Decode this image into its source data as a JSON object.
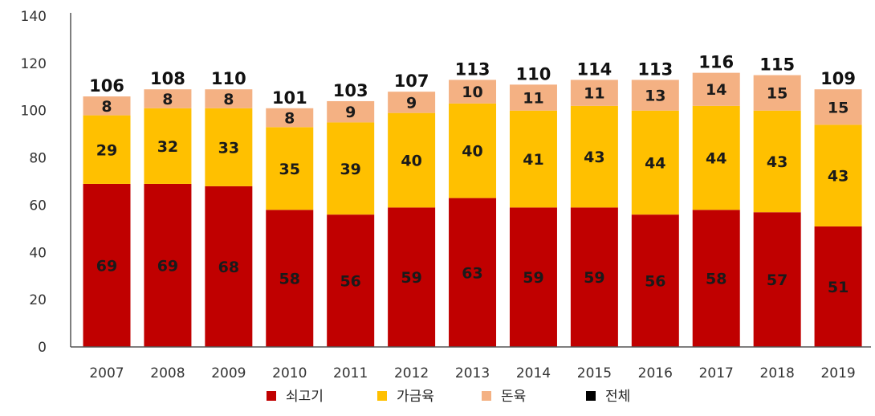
{
  "chart_data": {
    "type": "bar",
    "stacked": true,
    "categories": [
      "2007",
      "2008",
      "2009",
      "2010",
      "2011",
      "2012",
      "2013",
      "2014",
      "2015",
      "2016",
      "2017",
      "2018",
      "2019"
    ],
    "series": [
      {
        "name": "쇠고기",
        "color": "#c00000",
        "values": [
          69,
          69,
          68,
          58,
          56,
          59,
          63,
          59,
          59,
          56,
          58,
          57,
          51
        ]
      },
      {
        "name": "가금육",
        "color": "#ffc000",
        "values": [
          29,
          32,
          33,
          35,
          39,
          40,
          40,
          41,
          43,
          44,
          44,
          43,
          43
        ]
      },
      {
        "name": "돈육",
        "color": "#f4b183",
        "values": [
          8,
          8,
          8,
          8,
          9,
          9,
          10,
          11,
          11,
          13,
          14,
          15,
          15
        ]
      }
    ],
    "totals": {
      "name": "전체",
      "color": "#000000",
      "values": [
        106,
        108,
        110,
        101,
        103,
        107,
        113,
        110,
        114,
        113,
        116,
        115,
        109
      ]
    },
    "ylim": [
      0,
      140
    ],
    "yticks": [
      0,
      20,
      40,
      60,
      80,
      100,
      120,
      140
    ],
    "grid": false,
    "legend_position": "bottom"
  }
}
